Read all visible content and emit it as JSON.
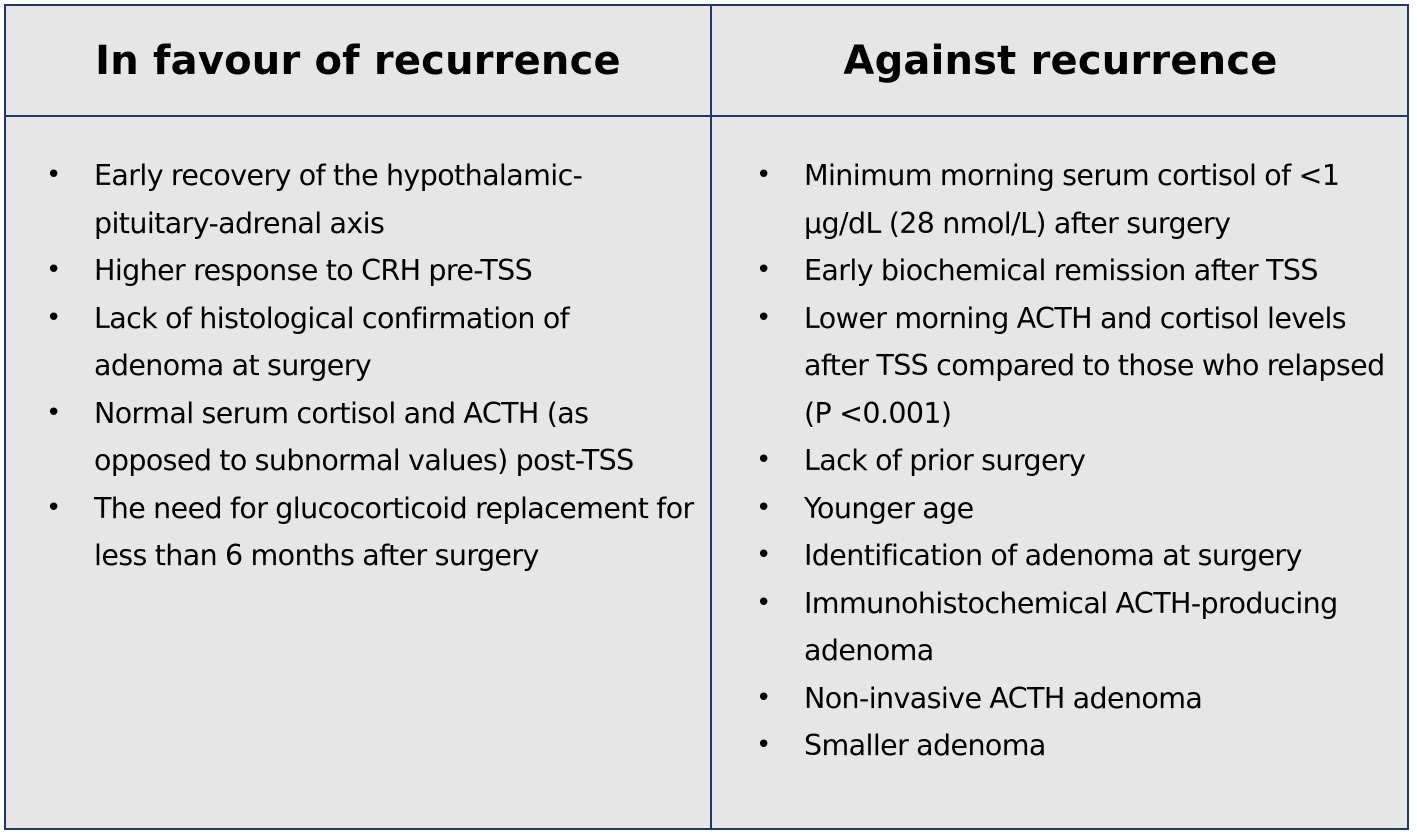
{
  "columns": [
    {
      "heading": "In favour of recurrence",
      "items": [
        "Early recovery of the hypothalamic-pituitary-adrenal axis",
        "Higher response to CRH pre-TSS",
        "Lack of histological confirmation of adenoma at surgery",
        "Normal serum cortisol and ACTH (as opposed to subnormal values) post-TSS",
        "The need for glucocorticoid replacement for less than 6 months after surgery"
      ]
    },
    {
      "heading": "Against recurrence",
      "items": [
        "Minimum morning serum cortisol of <1 µg/dL (28 nmol/L) after surgery",
        "Early biochemical remission after TSS",
        "Lower morning ACTH and cortisol levels after TSS compared to those who relapsed (P <0.001)",
        "Lack of prior surgery",
        "Younger age",
        "Identification of adenoma at surgery",
        "Immunohistochemical ACTH-producing adenoma",
        "Non-invasive ACTH adenoma",
        "Smaller adenoma"
      ]
    }
  ]
}
